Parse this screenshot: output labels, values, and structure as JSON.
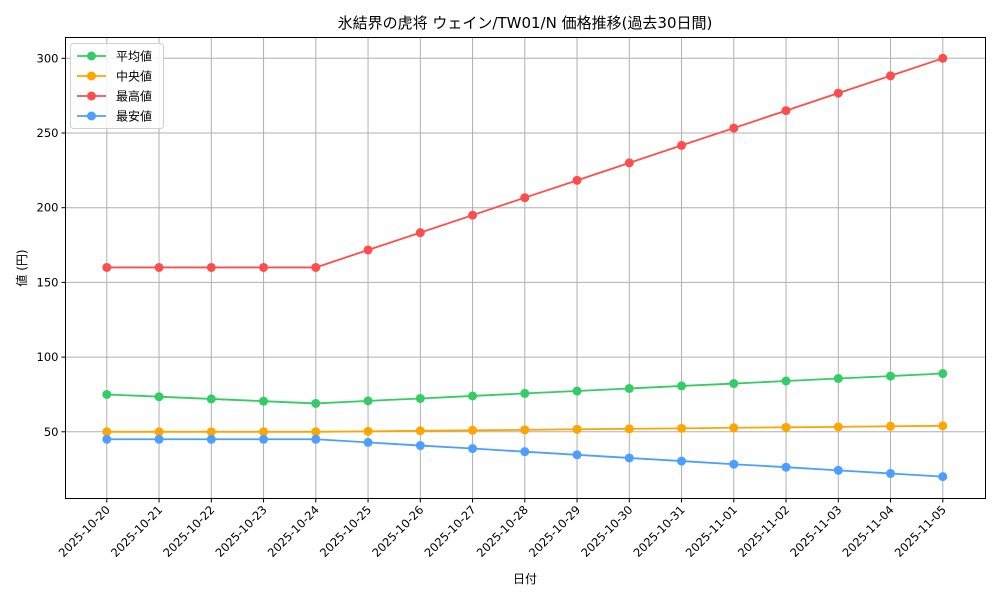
{
  "chart_data": {
    "type": "line",
    "title": "氷結界の虎将 ウェイン/TW01/N 価格推移(過去30日間)",
    "xlabel": "日付",
    "ylabel": "値 (円)",
    "x": [
      "2025-10-20",
      "2025-10-21",
      "2025-10-22",
      "2025-10-23",
      "2025-10-24",
      "2025-10-25",
      "2025-10-26",
      "2025-10-27",
      "2025-10-28",
      "2025-10-29",
      "2025-10-30",
      "2025-10-31",
      "2025-11-01",
      "2025-11-02",
      "2025-11-03",
      "2025-11-04",
      "2025-11-05"
    ],
    "yticks": [
      50,
      100,
      150,
      200,
      250,
      300
    ],
    "ylim": [
      5.5,
      314
    ],
    "grid": true,
    "legend_position": "upper left",
    "series": [
      {
        "name": "平均値",
        "color": "#33cc66",
        "values": [
          75,
          73.5,
          72,
          70.5,
          69,
          70.7,
          72.3,
          74,
          75.7,
          77.3,
          79,
          80.7,
          82.3,
          84,
          85.7,
          87.3,
          89
        ]
      },
      {
        "name": "中央値",
        "color": "#ffa500",
        "values": [
          50,
          50,
          50,
          50,
          50,
          50.3,
          50.7,
          51,
          51.3,
          51.7,
          52,
          52.3,
          52.7,
          53,
          53.3,
          53.7,
          54
        ]
      },
      {
        "name": "最高値",
        "color": "#ff4d4d",
        "values": [
          160,
          160,
          160,
          160,
          160,
          171.7,
          183.3,
          195,
          206.7,
          218.3,
          230,
          241.7,
          253.3,
          265,
          276.7,
          288.3,
          300
        ]
      },
      {
        "name": "最安値",
        "color": "#4d9fff",
        "values": [
          45,
          45,
          45,
          45,
          45,
          42.9,
          40.8,
          38.8,
          36.7,
          34.6,
          32.5,
          30.4,
          28.3,
          26.3,
          24.2,
          22.1,
          20
        ]
      }
    ]
  }
}
